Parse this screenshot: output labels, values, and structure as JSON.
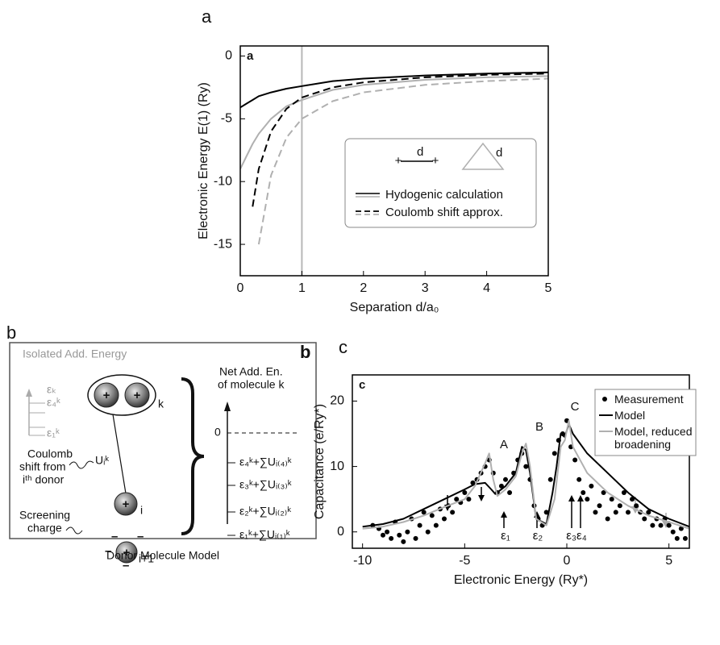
{
  "panel_labels": [
    "a",
    "b",
    "c"
  ],
  "chart_data": [
    {
      "type": "line",
      "panel_tag": "a",
      "x_label": "Separation d/a₀",
      "y_label": "Electronic Energy E(1) (Ry)",
      "xlim": [
        0,
        5
      ],
      "ylim": [
        -17.5,
        0.8
      ],
      "xticks": [
        0,
        1,
        2,
        3,
        4,
        5
      ],
      "yticks": [
        0,
        -5,
        -10,
        -15
      ],
      "vline": 1,
      "vline_color": "#b8b8b8",
      "x": [
        0,
        0.1,
        0.2,
        0.3,
        0.5,
        0.75,
        1,
        1.5,
        2,
        3,
        4,
        5
      ],
      "series": [
        {
          "color": "#000000",
          "style": "solid",
          "values": [
            -4.1,
            -3.8,
            -3.5,
            -3.2,
            -2.9,
            -2.6,
            -2.4,
            -2.0,
            -1.8,
            -1.55,
            -1.4,
            -1.3
          ]
        },
        {
          "color": "#b0b0b0",
          "style": "solid",
          "values": [
            -9,
            -8,
            -7,
            -6.2,
            -5,
            -4,
            -3.5,
            -2.7,
            -2.3,
            -1.9,
            -1.7,
            -1.6
          ]
        },
        {
          "color": "#000000",
          "style": "dashed",
          "values": [
            null,
            null,
            -12,
            -9,
            -6,
            -4.2,
            -3.3,
            -2.5,
            -2.1,
            -1.7,
            -1.5,
            -1.4
          ]
        },
        {
          "color": "#b0b0b0",
          "style": "dashed",
          "values": [
            null,
            null,
            null,
            -15,
            -9.5,
            -6.5,
            -5,
            -3.6,
            -2.9,
            -2.3,
            -2.0,
            -1.8
          ]
        }
      ],
      "legend_icon_labels": [
        "d",
        "d"
      ],
      "legend": [
        {
          "label": "Hydogenic calculation",
          "style": "solid"
        },
        {
          "label": "Coulomb shift approx.",
          "style": "dashed"
        }
      ]
    },
    {
      "type": "combo",
      "panel_tag": "c",
      "x_label": "Electronic Energy (Ry*)",
      "y_label": "Capacitance (e/Ry*)",
      "xlim": [
        -10.5,
        6
      ],
      "ylim": [
        -2.5,
        24
      ],
      "xticks": [
        -10,
        -5,
        0,
        5
      ],
      "yticks": [
        0,
        10,
        20
      ],
      "series": [
        {
          "name": "Measurement",
          "kind": "scatter",
          "color": "#000000",
          "x": [
            -9.5,
            -9.2,
            -9,
            -8.8,
            -8.6,
            -8.4,
            -8.2,
            -8,
            -7.8,
            -7.6,
            -7.4,
            -7.2,
            -7,
            -6.8,
            -6.6,
            -6.4,
            -6.2,
            -6,
            -5.8,
            -5.6,
            -5.4,
            -5.2,
            -5,
            -4.8,
            -4.6,
            -4.4,
            -4.2,
            -4,
            -3.8,
            -3.6,
            -3.4,
            -3.2,
            -3,
            -2.8,
            -2.6,
            -2.4,
            -2.2,
            -2,
            -1.8,
            -1.6,
            -1.4,
            -1.2,
            -1,
            -0.8,
            -0.6,
            -0.4,
            -0.2,
            0,
            0.2,
            0.4,
            0.6,
            0.8,
            1,
            1.2,
            1.4,
            1.6,
            1.8,
            2,
            2.2,
            2.4,
            2.6,
            2.8,
            3,
            3.2,
            3.4,
            3.6,
            3.8,
            4,
            4.2,
            4.4,
            4.6,
            4.8,
            5,
            5.2,
            5.4,
            5.6,
            5.8
          ],
          "values": [
            1,
            0.5,
            -0.5,
            0,
            -1,
            1.5,
            -0.5,
            -1.5,
            0,
            2,
            -1,
            1,
            3,
            0,
            2.5,
            1,
            3.5,
            2,
            4,
            3,
            5,
            4.5,
            6,
            5,
            7.5,
            8,
            9,
            10,
            11,
            9,
            6,
            7,
            8,
            6,
            9,
            11,
            12,
            10,
            8,
            4,
            2,
            1,
            3,
            8,
            12,
            14,
            15,
            17,
            13,
            11,
            8,
            6,
            5,
            7,
            3,
            4,
            6,
            2,
            5,
            3,
            4,
            6,
            3,
            5,
            4,
            3,
            2,
            3,
            1,
            2,
            1,
            2,
            1,
            0,
            -1,
            0.5,
            -1
          ]
        },
        {
          "name": "Model",
          "kind": "line",
          "color": "#000000",
          "x": [
            -10,
            -9,
            -8,
            -7,
            -6,
            -5,
            -4.5,
            -4,
            -3.7,
            -3.5,
            -3,
            -2.5,
            -2.2,
            -2,
            -1.8,
            -1.5,
            -1,
            -0.7,
            -0.5,
            -0.3,
            -0.1,
            0.1,
            0.3,
            1,
            2,
            3,
            4,
            5,
            6
          ],
          "values": [
            0.8,
            1.2,
            2,
            3.5,
            5,
            6.5,
            7.3,
            7.5,
            6.5,
            5.8,
            7,
            9,
            13,
            12.5,
            9,
            2,
            1.2,
            6,
            10,
            15,
            14.5,
            16.5,
            15,
            12,
            9,
            6,
            3.5,
            2,
            0.8
          ]
        },
        {
          "name": "Model, reduced broadening",
          "kind": "line",
          "color": "#b0b0b0",
          "x": [
            -10,
            -9,
            -8,
            -7,
            -6,
            -5,
            -4.5,
            -4,
            -3.8,
            -3.6,
            -3.4,
            -3,
            -2.5,
            -2.2,
            -2,
            -1.8,
            -1.5,
            -1,
            -0.6,
            -0.3,
            -0.1,
            0.1,
            0.3,
            1,
            2,
            3,
            4,
            5,
            6
          ],
          "values": [
            0.5,
            0.8,
            1.5,
            2.5,
            3.8,
            5,
            7,
            10.5,
            12,
            8,
            5.5,
            6.5,
            8.5,
            12,
            13.5,
            10,
            2,
            1,
            5,
            13,
            14,
            17,
            13,
            9,
            6,
            4,
            2.5,
            1.5,
            0.5
          ]
        }
      ],
      "annotations": [
        "A",
        "B",
        "C",
        "ε₁",
        "ε₂",
        "ε₃ε₄"
      ]
    }
  ],
  "diagram": {
    "panel_tag": "b",
    "isolated_title": "Isolated Add. Energy",
    "isolated_levels": [
      "εₖ",
      "ε₄ᵏ",
      "ε₁ᵏ"
    ],
    "net_title_1": "Net Add. En.",
    "net_title_2": "of molecule k",
    "zero": "0",
    "net_levels": [
      "ε₄ᵏ+∑Uᵢ₍₄₎ᵏ",
      "ε₃ᵏ+∑Uᵢ₍₃₎ᵏ",
      "ε₂ᵏ+∑Uᵢ₍₂₎ᵏ",
      "ε₁ᵏ+∑Uᵢ₍₁₎ᵏ"
    ],
    "molecule_label": "k",
    "coulomb_1": "Coulomb",
    "coulomb_2": "shift from",
    "coulomb_3": "iᵗʰ donor",
    "u_label": "Uᵢᵏ",
    "donor_label": "i",
    "screening_1": "Screening",
    "screening_2": "charge",
    "next_label": "i+1",
    "caption": "Donor Molecule Model"
  }
}
